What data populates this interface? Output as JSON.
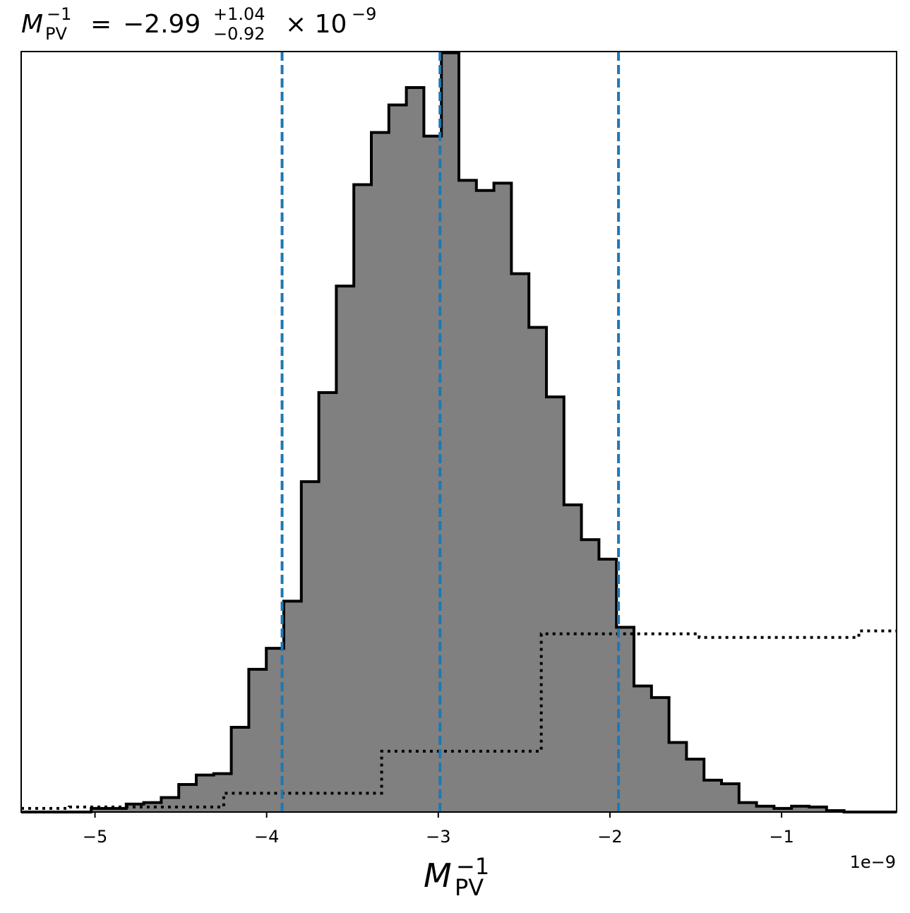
{
  "chart_data": {
    "type": "histogram",
    "title": {
      "symbol": "M",
      "subscript": "PV",
      "superscript": "−1",
      "equals": "=",
      "value": "−2.99",
      "upper_err": "+1.04",
      "lower_err": "−0.92",
      "exponent_base": "× 10",
      "exponent": "−9"
    },
    "xlabel": {
      "symbol": "M",
      "subscript": "PV",
      "superscript": "−1"
    },
    "x_offset_text": "1e−9",
    "xlim": [
      -5.43,
      -0.33
    ],
    "ylim": [
      0,
      1.0
    ],
    "x_ticks": [
      {
        "value": -5,
        "label": "−5"
      },
      {
        "value": -4,
        "label": "−4"
      },
      {
        "value": -3,
        "label": "−3"
      },
      {
        "value": -2,
        "label": "−2"
      },
      {
        "value": -1,
        "label": "−1"
      }
    ],
    "bin_edges": [
      -5.43,
      -5.328,
      -5.226,
      -5.124,
      -5.022,
      -4.92,
      -4.818,
      -4.716,
      -4.614,
      -4.512,
      -4.41,
      -4.308,
      -4.206,
      -4.104,
      -4.002,
      -3.9,
      -3.798,
      -3.696,
      -3.594,
      -3.492,
      -3.39,
      -3.288,
      -3.186,
      -3.084,
      -2.982,
      -2.88,
      -2.778,
      -2.676,
      -2.574,
      -2.472,
      -2.37,
      -2.268,
      -2.166,
      -2.064,
      -1.962,
      -1.86,
      -1.758,
      -1.656,
      -1.554,
      -1.452,
      -1.35,
      -1.248,
      -1.146,
      -1.044,
      -0.942,
      -0.84,
      -0.738,
      -0.636,
      -0.534,
      -0.432,
      -0.33
    ],
    "counts": [
      0.0,
      0.0,
      0.0,
      0.0,
      0.005,
      0.005,
      0.011,
      0.013,
      0.02,
      0.038,
      0.051,
      0.053,
      0.117,
      0.197,
      0.226,
      0.291,
      0.456,
      0.579,
      0.726,
      0.866,
      0.938,
      0.976,
      1.0,
      0.933,
      1.048,
      0.872,
      0.858,
      0.868,
      0.743,
      0.669,
      0.573,
      0.424,
      0.376,
      0.349,
      0.255,
      0.174,
      0.158,
      0.096,
      0.073,
      0.044,
      0.039,
      0.013,
      0.008,
      0.005,
      0.008,
      0.007,
      0.002,
      0.0,
      0.0,
      0.0
    ],
    "prior_steps": [
      {
        "x0": -5.43,
        "x1": -5.15,
        "y": 0.005
      },
      {
        "x0": -5.15,
        "x1": -4.25,
        "y": 0.007
      },
      {
        "x0": -4.25,
        "x1": -3.33,
        "y": 0.026
      },
      {
        "x0": -3.33,
        "x1": -2.4,
        "y": 0.084
      },
      {
        "x0": -2.4,
        "x1": -1.48,
        "y": 0.246
      },
      {
        "x0": -1.48,
        "x1": -0.55,
        "y": 0.241
      },
      {
        "x0": -0.55,
        "x1": -0.33,
        "y": 0.25
      }
    ],
    "vlines": [
      -3.91,
      -2.99,
      -1.95
    ],
    "colors": {
      "hist_fill": "#808080",
      "hist_edge": "#000000",
      "vline": "#1f77b4",
      "prior": "#000000"
    },
    "grid": false,
    "legend": "none"
  }
}
